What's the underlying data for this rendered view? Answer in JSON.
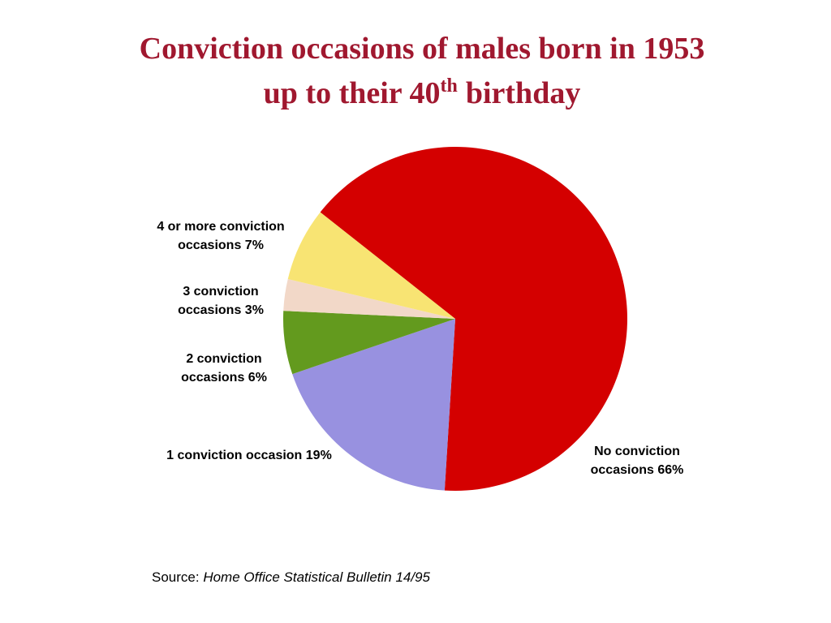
{
  "chart_data": {
    "type": "pie",
    "title": [
      "Conviction occasions of males born in 1953",
      "up to their 40",
      "th",
      "birthday"
    ],
    "categories": [
      "No conviction occasions",
      "1 conviction occasion",
      "2 conviction occasions",
      "3 conviction occasions",
      "4 or more conviction occasions"
    ],
    "values": [
      66,
      19,
      6,
      3,
      7
    ],
    "value_labels": [
      "66%",
      "19%",
      "6%",
      "3%",
      "7%"
    ],
    "colors": [
      "#d40000",
      "#9891e0",
      "#639a1e",
      "#f2d8c8",
      "#f8e473"
    ],
    "source_label": "Source:",
    "source": "Home Office Statistical Bulletin 14/95"
  }
}
